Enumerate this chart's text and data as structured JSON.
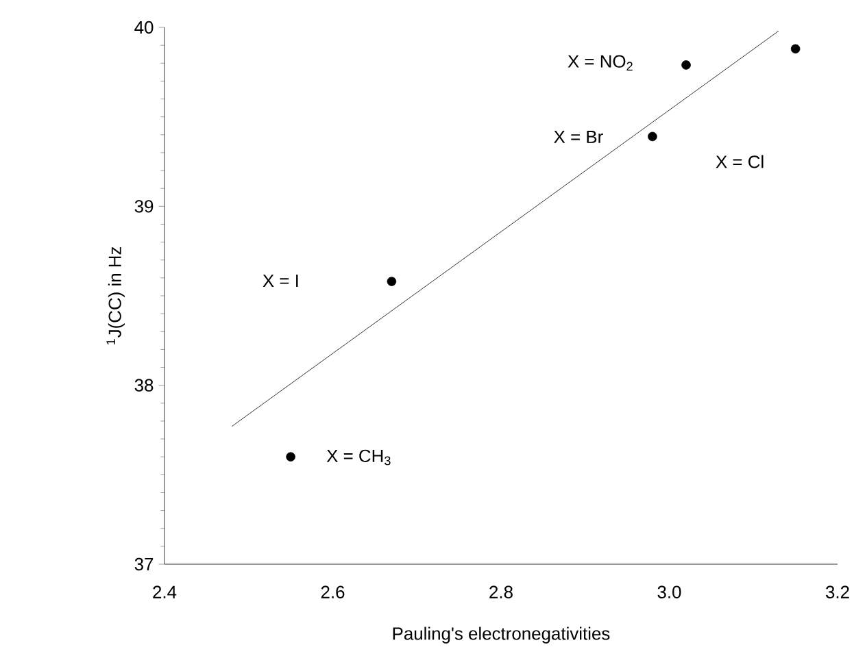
{
  "chart_data": {
    "type": "scatter",
    "xlabel": "Pauling's electronegativities",
    "ylabel": "$^{1}$J(CC) in Hz",
    "xlim": [
      2.4,
      3.2
    ],
    "xticks": [
      {
        "value": 2.4,
        "label": "2.4"
      },
      {
        "value": 2.6,
        "label": "2.6"
      },
      {
        "value": 2.8,
        "label": "2.8"
      },
      {
        "value": 3.0,
        "label": "3.0"
      },
      {
        "value": 3.2,
        "label": "3.2"
      }
    ],
    "ylim": [
      37,
      40
    ],
    "yticks": [
      37,
      38,
      39,
      40
    ],
    "series": [
      {
        "color": "#000000",
        "marker": "circle",
        "x": [
          2.55,
          2.67,
          2.98,
          3.02,
          3.15
        ],
        "values": [
          37.6,
          38.58,
          39.39,
          39.79,
          39.88
        ]
      },
      {
        "type": "line",
        "color": "#000000",
        "marker": "none",
        "line_style": "solid",
        "x": [
          2.48,
          3.13
        ],
        "values": [
          37.77,
          39.98
        ]
      }
    ],
    "annotations": [
      "X = NO$_{2}$",
      "X = Br",
      "X = Cl",
      "X = I",
      "X = CH$_{3}$"
    ]
  }
}
